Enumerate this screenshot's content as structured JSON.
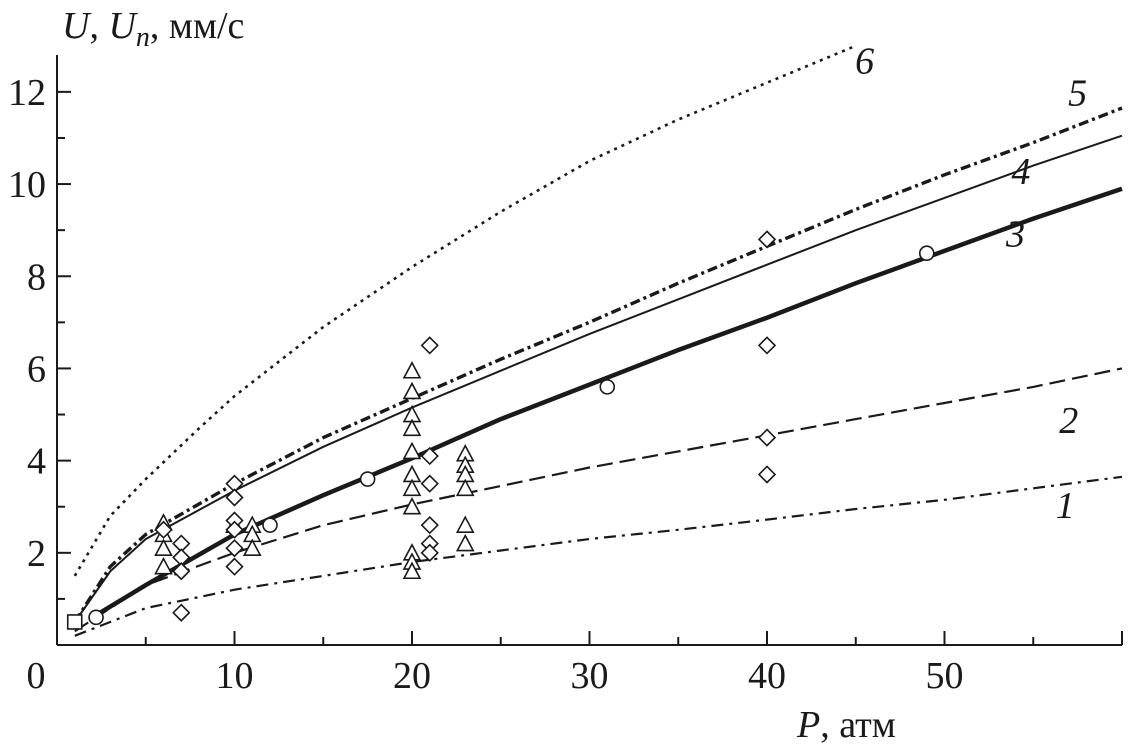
{
  "chart_data": {
    "type": "line",
    "ylabel": {
      "main": "U",
      "sep1": ", ",
      "sub_base": "U",
      "sub": "n",
      "rest": ", мм/с"
    },
    "xlabel": {
      "var": "P",
      "rest": ", атм"
    },
    "xlim": [
      0,
      60
    ],
    "ylim": [
      0,
      12.8
    ],
    "x_ticks": [
      0,
      10,
      20,
      30,
      40,
      50
    ],
    "x_tick_labels": [
      "0",
      "10",
      "20",
      "30",
      "40",
      "50"
    ],
    "y_ticks": [
      2,
      4,
      6,
      8,
      10,
      12
    ],
    "y_tick_labels": [
      "2",
      "4",
      "6",
      "8",
      "10",
      "12"
    ],
    "grid": false,
    "series": [
      {
        "name": "1",
        "style": "dash-dot",
        "x": [
          1,
          5,
          10,
          15,
          20,
          25,
          30,
          35,
          40,
          45,
          50,
          55,
          60
        ],
        "y": [
          0.2,
          0.8,
          1.2,
          1.5,
          1.8,
          2.05,
          2.3,
          2.5,
          2.72,
          2.95,
          3.15,
          3.4,
          3.65
        ]
      },
      {
        "name": "2",
        "style": "dashed",
        "x": [
          1,
          5,
          10,
          15,
          20,
          25,
          30,
          35,
          40,
          45,
          50,
          55,
          60
        ],
        "y": [
          0.3,
          1.3,
          2.0,
          2.6,
          3.05,
          3.45,
          3.85,
          4.2,
          4.55,
          4.9,
          5.25,
          5.6,
          6.0
        ]
      },
      {
        "name": "3",
        "style": "thick-solid",
        "x": [
          2,
          5,
          10,
          15,
          20,
          25,
          30,
          35,
          40,
          45,
          50,
          55,
          60
        ],
        "y": [
          0.6,
          1.3,
          2.4,
          3.25,
          4.05,
          4.9,
          5.65,
          6.4,
          7.1,
          7.85,
          8.55,
          9.25,
          9.9
        ]
      },
      {
        "name": "4",
        "style": "thin-solid",
        "x": [
          1,
          3,
          5,
          10,
          15,
          20,
          25,
          30,
          35,
          40,
          45,
          50,
          55,
          60
        ],
        "y": [
          0.5,
          1.6,
          2.3,
          3.35,
          4.3,
          5.15,
          5.95,
          6.75,
          7.5,
          8.25,
          9.0,
          9.7,
          10.4,
          11.05
        ]
      },
      {
        "name": "5",
        "style": "dash-dot-bold",
        "x": [
          1,
          3,
          5,
          10,
          15,
          20,
          25,
          30,
          35,
          40,
          45,
          50,
          55,
          60
        ],
        "y": [
          0.5,
          1.7,
          2.4,
          3.5,
          4.5,
          5.35,
          6.2,
          7.0,
          7.85,
          8.65,
          9.45,
          10.2,
          10.9,
          11.65
        ]
      },
      {
        "name": "6",
        "style": "dotted",
        "x": [
          1,
          3,
          5,
          8,
          10,
          15,
          20,
          25,
          30,
          35,
          40,
          45
        ],
        "y": [
          1.5,
          2.8,
          3.6,
          4.7,
          5.4,
          6.9,
          8.2,
          9.4,
          10.5,
          11.4,
          12.2,
          13.0
        ]
      }
    ],
    "points": {
      "squares": [
        [
          1,
          0.5
        ]
      ],
      "circles": [
        [
          2.2,
          0.6
        ],
        [
          12,
          2.6
        ],
        [
          17.5,
          3.6
        ],
        [
          31,
          5.6
        ],
        [
          49,
          8.5
        ]
      ],
      "triangles": [
        [
          6,
          2.65
        ],
        [
          6,
          2.4
        ],
        [
          6,
          2.1
        ],
        [
          6,
          1.7
        ],
        [
          10,
          2.6
        ],
        [
          11,
          2.6
        ],
        [
          11,
          2.4
        ],
        [
          11,
          2.1
        ],
        [
          20,
          5.95
        ],
        [
          20,
          5.5
        ],
        [
          20,
          5.0
        ],
        [
          20,
          4.7
        ],
        [
          20,
          4.2
        ],
        [
          20,
          3.7
        ],
        [
          20,
          3.4
        ],
        [
          20,
          3.0
        ],
        [
          20,
          2.0
        ],
        [
          20,
          1.8
        ],
        [
          20,
          1.6
        ],
        [
          23,
          4.15
        ],
        [
          23,
          3.9
        ],
        [
          23,
          3.7
        ],
        [
          23,
          3.4
        ],
        [
          23,
          2.6
        ],
        [
          23,
          2.2
        ]
      ],
      "diamonds": [
        [
          6,
          2.5
        ],
        [
          7,
          2.2
        ],
        [
          7,
          1.9
        ],
        [
          7,
          1.6
        ],
        [
          7,
          0.7
        ],
        [
          10,
          3.5
        ],
        [
          10,
          3.2
        ],
        [
          10,
          2.7
        ],
        [
          10,
          2.5
        ],
        [
          10,
          2.1
        ],
        [
          10,
          1.7
        ],
        [
          21,
          6.5
        ],
        [
          21,
          4.1
        ],
        [
          21,
          3.5
        ],
        [
          21,
          2.6
        ],
        [
          21,
          2.2
        ],
        [
          21,
          2.0
        ],
        [
          40,
          8.8
        ],
        [
          40,
          6.5
        ],
        [
          40,
          4.5
        ],
        [
          40,
          3.7
        ]
      ]
    },
    "curve_labels": [
      {
        "text": "1",
        "x": 56.8,
        "y": 2.75
      },
      {
        "text": "2",
        "x": 57.0,
        "y": 4.6
      },
      {
        "text": "3",
        "x": 54.0,
        "y": 8.65
      },
      {
        "text": "4",
        "x": 54.3,
        "y": 10.0
      },
      {
        "text": "5",
        "x": 57.5,
        "y": 11.7
      },
      {
        "text": "6",
        "x": 45.5,
        "y": 12.4
      }
    ]
  }
}
